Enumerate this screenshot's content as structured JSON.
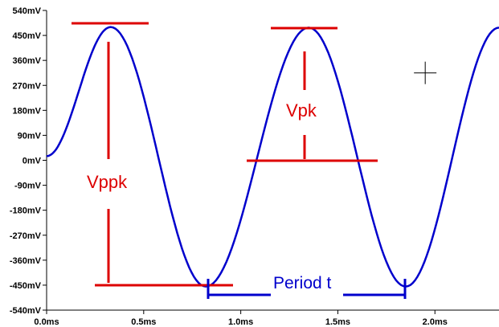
{
  "chart_data": {
    "type": "line",
    "title": "",
    "xlabel": "",
    "ylabel": "",
    "xlim": [
      0,
      2.33
    ],
    "ylim": [
      -540,
      540
    ],
    "grid": false,
    "x_ticks": [
      {
        "value": 0.0,
        "label": "0.0ms"
      },
      {
        "value": 0.5,
        "label": "0.5ms"
      },
      {
        "value": 1.0,
        "label": "1.0ms"
      },
      {
        "value": 1.5,
        "label": "1.5ms"
      },
      {
        "value": 2.0,
        "label": "2.0ms"
      }
    ],
    "y_ticks": [
      {
        "value": 540,
        "label": "540mV"
      },
      {
        "value": 450,
        "label": "450mV"
      },
      {
        "value": 360,
        "label": "360mV"
      },
      {
        "value": 270,
        "label": "270mV"
      },
      {
        "value": 180,
        "label": "180mV"
      },
      {
        "value": 90,
        "label": "90mV"
      },
      {
        "value": 0,
        "label": "0mV"
      },
      {
        "value": -90,
        "label": "-90mV"
      },
      {
        "value": -180,
        "label": "-180mV"
      },
      {
        "value": -270,
        "label": "-270mV"
      },
      {
        "value": -360,
        "label": "-360mV"
      },
      {
        "value": -450,
        "label": "-450mV"
      },
      {
        "value": -540,
        "label": "-540mV"
      }
    ],
    "series": [
      {
        "color": "#0000cc",
        "frequency_khz": 0.98,
        "phase_deg": 10,
        "peaks": [
          {
            "x": 0.33,
            "y": 480
          },
          {
            "x": 1.35,
            "y": 478
          },
          {
            "x": 2.33,
            "y": 478
          }
        ],
        "troughs": [
          {
            "x": 0.82,
            "y": -455
          },
          {
            "x": 1.85,
            "y": -455
          }
        ]
      }
    ],
    "annotations": [
      {
        "text": "Vppk",
        "color": "#dd0000"
      },
      {
        "text": "Vpk",
        "color": "#dd0000"
      },
      {
        "text": "Period t",
        "color": "#0000cc"
      }
    ],
    "cursor_marker": {
      "x": 1.95,
      "y": 315
    }
  }
}
